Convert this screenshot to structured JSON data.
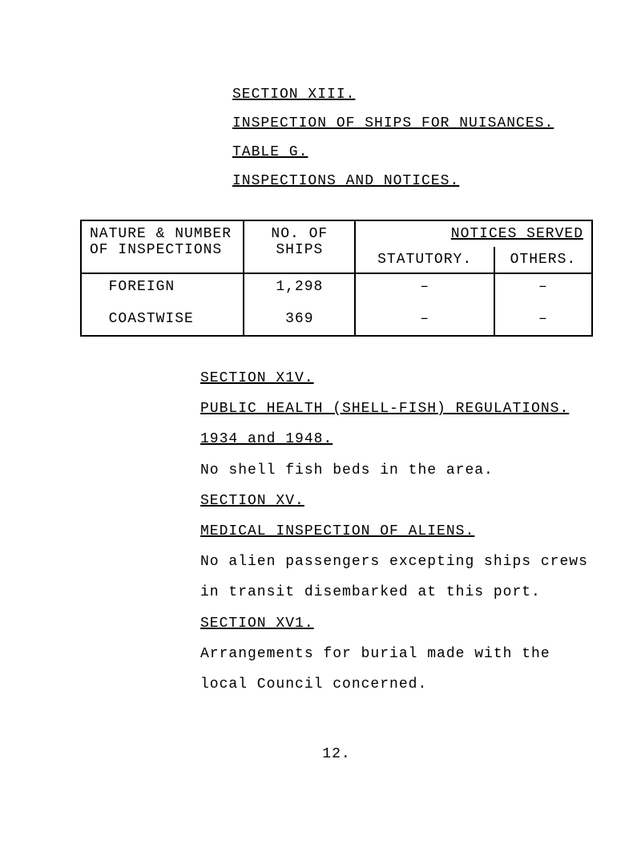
{
  "header": {
    "section_line": "SECTION  XIII.",
    "inspection_line": "INSPECTION OF SHIPS FOR NUISANCES.",
    "table_line": "TABLE  G.",
    "subtitle": "INSPECTIONS AND NOTICES."
  },
  "table": {
    "h1a": "NATURE & NUMBER",
    "h1b": "OF INSPECTIONS",
    "h2a": "NO. OF",
    "h2b": "SHIPS",
    "h34_top": "NOTICES SERVED",
    "h3": "STATUTORY.",
    "h4": "OTHERS.",
    "r1c1": "FOREIGN",
    "r1c2": "1,298",
    "r1c3": "–",
    "r1c4": "–",
    "r2c1": "COASTWISE",
    "r2c2": "369",
    "r2c3": "–",
    "r2c4": "–"
  },
  "body": {
    "sec14_title": "SECTION  X1V.",
    "sec14_sub": "PUBLIC HEALTH (SHELL-FISH) REGULATIONS.",
    "sec14_years": "1934 and 1948.",
    "sec14_text": "No shell fish beds in the area.",
    "sec15_title": "SECTION  XV.",
    "sec15_sub": "MEDICAL INSPECTION OF ALIENS.",
    "sec15_text1": "No alien passengers excepting ships crews",
    "sec15_text2": "in transit disembarked at this port.",
    "sec16_title": "SECTION  XV1.",
    "sec16_text1": "Arrangements for burial made with the",
    "sec16_text2": "local Council concerned."
  },
  "page_number": "12."
}
